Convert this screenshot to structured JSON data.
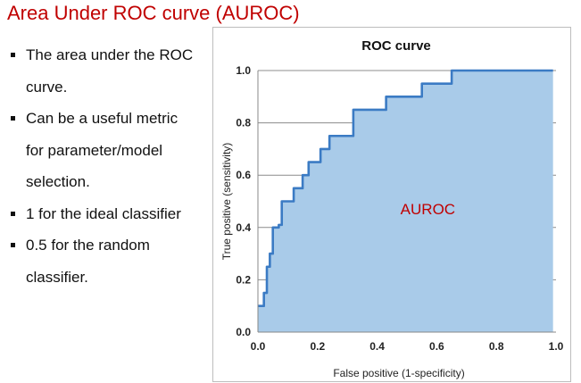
{
  "slide": {
    "title": "Area Under ROC curve (AUROC)",
    "bullets": [
      "The area under the ROC curve.",
      "Can be a useful metric for parameter/model selection.",
      "1 for the ideal classifier",
      "0.5 for the random classifier."
    ]
  },
  "chart_data": {
    "type": "area",
    "title": "ROC curve",
    "xlabel": "False positive (1-specificity)",
    "ylabel": "True positive (sensitivity)",
    "xlim": [
      0,
      1
    ],
    "ylim": [
      0,
      1
    ],
    "xticks": [
      "0.0",
      "0.2",
      "0.4",
      "0.6",
      "0.8",
      "1.0"
    ],
    "yticks": [
      "0.0",
      "0.2",
      "0.4",
      "0.6",
      "0.8",
      "1.0"
    ],
    "grid": "horizontal",
    "annotation": "AUROC",
    "colors": {
      "line": "#3b7bc4",
      "fill": "#a9cbe9",
      "annotation": "#c00000",
      "grid": "#8c8c8c"
    },
    "x": [
      0,
      0.02,
      0.02,
      0.03,
      0.03,
      0.04,
      0.04,
      0.05,
      0.05,
      0.07,
      0.07,
      0.08,
      0.08,
      0.12,
      0.12,
      0.15,
      0.15,
      0.17,
      0.17,
      0.21,
      0.21,
      0.24,
      0.24,
      0.32,
      0.32,
      0.43,
      0.43,
      0.55,
      0.55,
      0.65,
      0.65,
      0.99
    ],
    "y": [
      0.1,
      0.1,
      0.15,
      0.15,
      0.25,
      0.25,
      0.3,
      0.3,
      0.4,
      0.4,
      0.41,
      0.41,
      0.5,
      0.5,
      0.55,
      0.55,
      0.6,
      0.6,
      0.65,
      0.65,
      0.7,
      0.7,
      0.75,
      0.75,
      0.85,
      0.85,
      0.9,
      0.9,
      0.95,
      0.95,
      1.0,
      1.0
    ]
  }
}
